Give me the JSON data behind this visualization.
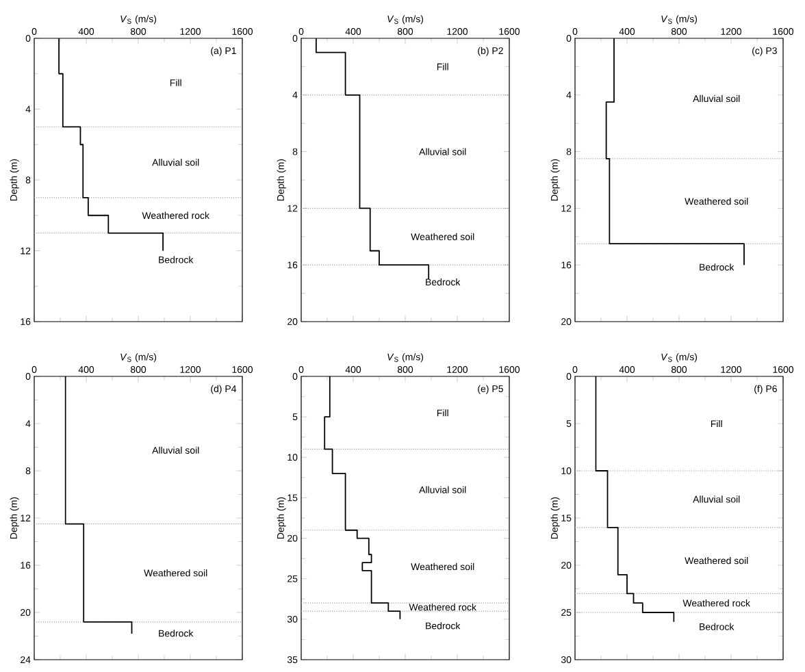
{
  "chart_data": [
    {
      "type": "line",
      "xlabel": "*V*$_{S}$ (m/s)",
      "ylabel": "Depth (m)",
      "xlim": [
        0,
        1600
      ],
      "xticks": [
        0,
        400,
        800,
        1200,
        1600
      ],
      "ylim": [
        16,
        0
      ],
      "yticks": [
        0,
        4,
        8,
        12,
        16
      ],
      "series": [
        {
          "color": "#000000",
          "x": [
            190,
            190,
            220,
            220,
            355,
            355,
            375,
            375,
            415,
            415,
            570,
            570,
            990,
            990
          ],
          "values": [
            0,
            2,
            2,
            5,
            5,
            6,
            6,
            9,
            9,
            10,
            10,
            11,
            11,
            12
          ]
        }
      ],
      "ref_lines": [
        {
          "axis": "y",
          "value": 5,
          "color": "#999999",
          "line_style": "dotted"
        },
        {
          "axis": "y",
          "value": 9,
          "color": "#999999",
          "line_style": "dotted"
        },
        {
          "axis": "y",
          "value": 11,
          "color": "#999999",
          "line_style": "dotted"
        }
      ],
      "annotations": [
        "(a) P1",
        "Fill",
        "Alluvial soil",
        "Weathered rock",
        "Bedrock"
      ]
    },
    {
      "type": "line",
      "xlabel": "*V*$_{S}$ (m/s)",
      "ylabel": "Depth (m)",
      "xlim": [
        0,
        1600
      ],
      "xticks": [
        0,
        400,
        800,
        1200,
        1600
      ],
      "ylim": [
        20,
        0
      ],
      "yticks": [
        0,
        4,
        8,
        12,
        16,
        20
      ],
      "series": [
        {
          "color": "#000000",
          "x": [
            115,
            115,
            340,
            340,
            450,
            450,
            530,
            530,
            600,
            600,
            980,
            980
          ],
          "values": [
            0,
            1,
            1,
            4,
            4,
            12,
            12,
            15,
            15,
            16,
            16,
            17
          ]
        }
      ],
      "ref_lines": [
        {
          "axis": "y",
          "value": 4,
          "color": "#999999",
          "line_style": "dotted"
        },
        {
          "axis": "y",
          "value": 12,
          "color": "#999999",
          "line_style": "dotted"
        },
        {
          "axis": "y",
          "value": 16,
          "color": "#999999",
          "line_style": "dotted"
        }
      ],
      "annotations": [
        "(b) P2",
        "Fill",
        "Alluvial soil",
        "Weathered soil",
        "Bedrock"
      ]
    },
    {
      "type": "line",
      "xlabel": "*V*$_{S}$ (m/s)",
      "ylabel": "Depth (m)",
      "xlim": [
        0,
        1600
      ],
      "xticks": [
        0,
        400,
        800,
        1200,
        1600
      ],
      "ylim": [
        20,
        0
      ],
      "yticks": [
        0,
        4,
        8,
        12,
        16,
        20
      ],
      "series": [
        {
          "color": "#000000",
          "x": [
            300,
            300,
            240,
            240,
            265,
            265,
            1300,
            1300
          ],
          "values": [
            0,
            4.5,
            4.5,
            8.5,
            8.5,
            14.5,
            14.5,
            16
          ]
        }
      ],
      "ref_lines": [
        {
          "axis": "y",
          "value": 8.5,
          "color": "#999999",
          "line_style": "dotted"
        },
        {
          "axis": "y",
          "value": 14.5,
          "color": "#999999",
          "line_style": "dotted"
        }
      ],
      "annotations": [
        "(c) P3",
        "Alluvial soil",
        "Weathered soil",
        "Bedrock"
      ]
    },
    {
      "type": "line",
      "xlabel": "*V*$_{S}$ (m/s)",
      "ylabel": "Depth (m)",
      "xlim": [
        0,
        1600
      ],
      "xticks": [
        0,
        400,
        800,
        1200,
        1600
      ],
      "ylim": [
        24,
        0
      ],
      "yticks": [
        0,
        4,
        8,
        12,
        16,
        20,
        24
      ],
      "series": [
        {
          "color": "#000000",
          "x": [
            240,
            240,
            380,
            380,
            750,
            750
          ],
          "values": [
            0,
            12.5,
            12.5,
            20.8,
            20.8,
            21.8
          ]
        }
      ],
      "ref_lines": [
        {
          "axis": "y",
          "value": 12.5,
          "color": "#999999",
          "line_style": "dotted"
        },
        {
          "axis": "y",
          "value": 20.8,
          "color": "#999999",
          "line_style": "dotted"
        }
      ],
      "annotations": [
        "(d) P4",
        "Alluvial soil",
        "Weathered soil",
        "Bedrock"
      ]
    },
    {
      "type": "line",
      "xlabel": "*V*$_{S}$ (m/s)",
      "ylabel": "Depth (m)",
      "xlim": [
        0,
        1600
      ],
      "xticks": [
        0,
        400,
        800,
        1200,
        1600
      ],
      "ylim": [
        35,
        0
      ],
      "yticks": [
        0,
        5,
        10,
        15,
        20,
        25,
        30,
        35
      ],
      "series": [
        {
          "color": "#000000",
          "x": [
            220,
            220,
            180,
            180,
            240,
            240,
            340,
            340,
            430,
            430,
            520,
            520,
            540,
            540,
            470,
            470,
            540,
            540,
            670,
            670,
            760,
            760
          ],
          "values": [
            0,
            5,
            5,
            9,
            9,
            12,
            12,
            19,
            19,
            20,
            20,
            22,
            22,
            23,
            23,
            24,
            24,
            28,
            28,
            29,
            29,
            30
          ]
        }
      ],
      "ref_lines": [
        {
          "axis": "y",
          "value": 9,
          "color": "#999999",
          "line_style": "dotted"
        },
        {
          "axis": "y",
          "value": 19,
          "color": "#999999",
          "line_style": "dotted"
        },
        {
          "axis": "y",
          "value": 28,
          "color": "#999999",
          "line_style": "dotted"
        },
        {
          "axis": "y",
          "value": 29,
          "color": "#999999",
          "line_style": "dotted"
        }
      ],
      "annotations": [
        "(e) P5",
        "Fill",
        "Alluvial soil",
        "Weathered soil",
        "Weathered rock",
        "Bedrock"
      ]
    },
    {
      "type": "line",
      "xlabel": "*V*$_{S}$ (m/s)",
      "ylabel": "Depth (m)",
      "xlim": [
        0,
        1600
      ],
      "xticks": [
        0,
        400,
        800,
        1200,
        1600
      ],
      "ylim": [
        30,
        0
      ],
      "yticks": [
        0,
        5,
        10,
        15,
        20,
        25,
        30
      ],
      "series": [
        {
          "color": "#000000",
          "x": [
            160,
            160,
            250,
            250,
            330,
            330,
            400,
            400,
            450,
            450,
            520,
            520,
            760,
            760
          ],
          "values": [
            0,
            10,
            10,
            16,
            16,
            21,
            21,
            23,
            23,
            24,
            24,
            25,
            25,
            26
          ]
        }
      ],
      "ref_lines": [
        {
          "axis": "y",
          "value": 10,
          "color": "#999999",
          "line_style": "dotted"
        },
        {
          "axis": "y",
          "value": 16,
          "color": "#999999",
          "line_style": "dotted"
        },
        {
          "axis": "y",
          "value": 23,
          "color": "#999999",
          "line_style": "dotted"
        },
        {
          "axis": "y",
          "value": 25,
          "color": "#999999",
          "line_style": "dotted"
        }
      ],
      "annotations": [
        "(f) P6",
        "Fill",
        "Alluvial soil",
        "Weathered soil",
        "Weathered rock",
        "Bedrock"
      ]
    }
  ]
}
